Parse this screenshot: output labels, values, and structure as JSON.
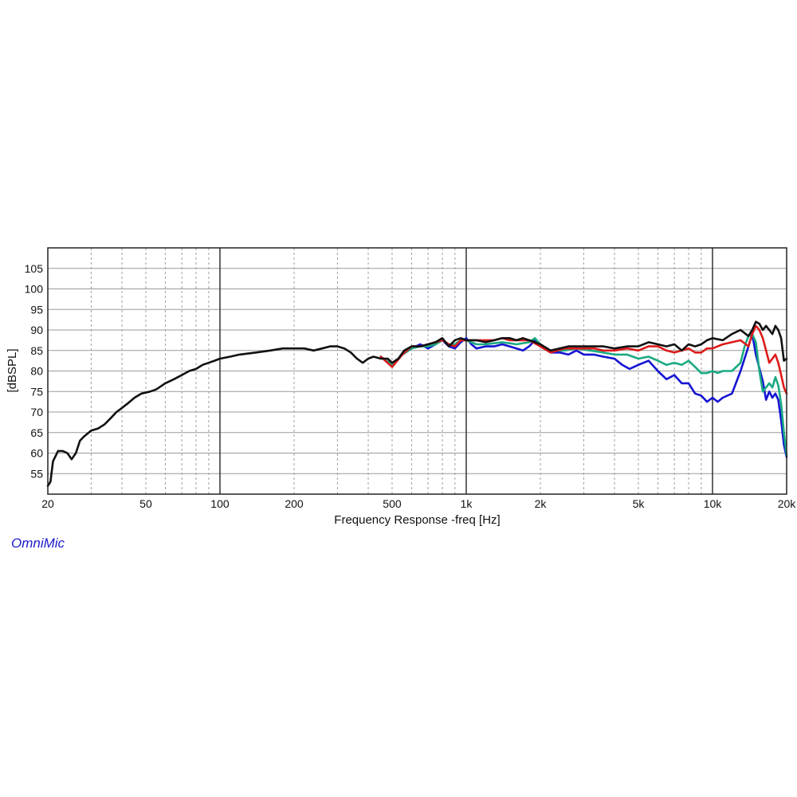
{
  "brand": {
    "label": "OmniMic",
    "color": "#1a1acc"
  },
  "chart_data": {
    "type": "line",
    "xlabel": "Frequency Response -freq [Hz]",
    "ylabel": "[dBSPL]",
    "x_scale": "log",
    "xlim": [
      20,
      20000
    ],
    "ylim": [
      50,
      110
    ],
    "grid": true,
    "x_tick_values": [
      20,
      50,
      100,
      200,
      500,
      1000,
      2000,
      5000,
      10000,
      20000
    ],
    "x_tick_labels": [
      "20",
      "50",
      "100",
      "200",
      "500",
      "1k",
      "2k",
      "5k",
      "10k",
      "20k"
    ],
    "y_tick_values": [
      55,
      60,
      65,
      70,
      75,
      80,
      85,
      90,
      95,
      100,
      105
    ],
    "y_tick_labels": [
      "55",
      "60",
      "65",
      "70",
      "75",
      "80",
      "85",
      "90",
      "95",
      "100",
      "105"
    ],
    "series": [
      {
        "color": "#1414d2",
        "points": [
          [
            450,
            83.5
          ],
          [
            500,
            81.5
          ],
          [
            550,
            84
          ],
          [
            600,
            85.5
          ],
          [
            650,
            86.5
          ],
          [
            700,
            85.5
          ],
          [
            750,
            86.5
          ],
          [
            800,
            87.5
          ],
          [
            850,
            86
          ],
          [
            900,
            85.5
          ],
          [
            950,
            87
          ],
          [
            1000,
            88
          ],
          [
            1050,
            86.5
          ],
          [
            1100,
            85.5
          ],
          [
            1200,
            86
          ],
          [
            1300,
            86
          ],
          [
            1400,
            86.5
          ],
          [
            1500,
            86
          ],
          [
            1600,
            85.5
          ],
          [
            1700,
            85
          ],
          [
            1800,
            86
          ],
          [
            1900,
            87.5
          ],
          [
            2000,
            86
          ],
          [
            2200,
            84.5
          ],
          [
            2400,
            84.5
          ],
          [
            2600,
            84
          ],
          [
            2800,
            85
          ],
          [
            3000,
            84
          ],
          [
            3300,
            84
          ],
          [
            3600,
            83.5
          ],
          [
            4000,
            83
          ],
          [
            4300,
            81.5
          ],
          [
            4600,
            80.5
          ],
          [
            5000,
            81.5
          ],
          [
            5500,
            82.5
          ],
          [
            6000,
            80
          ],
          [
            6500,
            78
          ],
          [
            7000,
            79
          ],
          [
            7500,
            77
          ],
          [
            8000,
            77
          ],
          [
            8500,
            74.5
          ],
          [
            9000,
            74
          ],
          [
            9500,
            72.5
          ],
          [
            10000,
            73.5
          ],
          [
            10500,
            72.5
          ],
          [
            11000,
            73.5
          ],
          [
            12000,
            74.5
          ],
          [
            13000,
            80
          ],
          [
            14000,
            86
          ],
          [
            14500,
            89
          ],
          [
            15000,
            84
          ],
          [
            16000,
            77.5
          ],
          [
            16500,
            73
          ],
          [
            17000,
            75
          ],
          [
            17500,
            73.5
          ],
          [
            18000,
            74.5
          ],
          [
            18500,
            73
          ],
          [
            19000,
            68
          ],
          [
            19500,
            62
          ],
          [
            20000,
            59
          ]
        ]
      },
      {
        "color": "#1aaa82",
        "points": [
          [
            450,
            83.5
          ],
          [
            500,
            81.5
          ],
          [
            550,
            84
          ],
          [
            600,
            85.5
          ],
          [
            650,
            86
          ],
          [
            700,
            86
          ],
          [
            750,
            86.5
          ],
          [
            800,
            87.5
          ],
          [
            850,
            86.5
          ],
          [
            900,
            86.5
          ],
          [
            950,
            87.5
          ],
          [
            1000,
            87.5
          ],
          [
            1100,
            86.5
          ],
          [
            1200,
            86.5
          ],
          [
            1400,
            87
          ],
          [
            1600,
            86.5
          ],
          [
            1800,
            87
          ],
          [
            1900,
            88
          ],
          [
            2000,
            86.5
          ],
          [
            2200,
            85
          ],
          [
            2500,
            85
          ],
          [
            2800,
            85.5
          ],
          [
            3200,
            85
          ],
          [
            3600,
            84.5
          ],
          [
            4000,
            84
          ],
          [
            4500,
            84
          ],
          [
            5000,
            83
          ],
          [
            5500,
            83.5
          ],
          [
            6000,
            82.5
          ],
          [
            6500,
            81.5
          ],
          [
            7000,
            82
          ],
          [
            7500,
            81.5
          ],
          [
            8000,
            82.5
          ],
          [
            8500,
            81
          ],
          [
            9000,
            79.5
          ],
          [
            9500,
            79.5
          ],
          [
            10000,
            80
          ],
          [
            10500,
            79.5
          ],
          [
            11000,
            80
          ],
          [
            12000,
            80
          ],
          [
            13000,
            82
          ],
          [
            13500,
            86
          ],
          [
            14000,
            88.5
          ],
          [
            14500,
            89
          ],
          [
            15000,
            87
          ],
          [
            15500,
            80
          ],
          [
            16000,
            75
          ],
          [
            16500,
            76
          ],
          [
            17000,
            77
          ],
          [
            17500,
            76
          ],
          [
            18000,
            78.5
          ],
          [
            18500,
            76.5
          ],
          [
            19000,
            72
          ],
          [
            19500,
            65
          ],
          [
            20000,
            59.5
          ]
        ]
      },
      {
        "color": "#dd1a1a",
        "points": [
          [
            450,
            83.5
          ],
          [
            500,
            81
          ],
          [
            550,
            84
          ],
          [
            600,
            86
          ],
          [
            650,
            86
          ],
          [
            700,
            86.5
          ],
          [
            750,
            87
          ],
          [
            800,
            87.5
          ],
          [
            850,
            86.5
          ],
          [
            900,
            86
          ],
          [
            950,
            87.5
          ],
          [
            1000,
            87.5
          ],
          [
            1100,
            87.5
          ],
          [
            1200,
            87.5
          ],
          [
            1300,
            87.5
          ],
          [
            1400,
            88
          ],
          [
            1500,
            87.5
          ],
          [
            1600,
            87.5
          ],
          [
            1800,
            87.5
          ],
          [
            2000,
            86
          ],
          [
            2200,
            84.5
          ],
          [
            2500,
            85.5
          ],
          [
            2800,
            85.5
          ],
          [
            3000,
            85.5
          ],
          [
            3300,
            85.5
          ],
          [
            3600,
            85
          ],
          [
            4000,
            85
          ],
          [
            4500,
            85.5
          ],
          [
            5000,
            85
          ],
          [
            5500,
            86
          ],
          [
            6000,
            86
          ],
          [
            6500,
            85
          ],
          [
            7000,
            84.5
          ],
          [
            7500,
            85
          ],
          [
            8000,
            85.5
          ],
          [
            8500,
            84.5
          ],
          [
            9000,
            84.5
          ],
          [
            9500,
            85.5
          ],
          [
            10000,
            85.5
          ],
          [
            11000,
            86.5
          ],
          [
            12000,
            87
          ],
          [
            13000,
            87.5
          ],
          [
            14000,
            86
          ],
          [
            14500,
            89
          ],
          [
            15000,
            91
          ],
          [
            15500,
            90
          ],
          [
            16000,
            88
          ],
          [
            16500,
            85
          ],
          [
            17000,
            82
          ],
          [
            17500,
            83
          ],
          [
            18000,
            84
          ],
          [
            18500,
            82
          ],
          [
            19000,
            79
          ],
          [
            19500,
            76
          ],
          [
            20000,
            74.5
          ]
        ]
      },
      {
        "color": "#111111",
        "points": [
          [
            20,
            52
          ],
          [
            20.5,
            53
          ],
          [
            21,
            58
          ],
          [
            22,
            60.5
          ],
          [
            23,
            60.5
          ],
          [
            24,
            60
          ],
          [
            25,
            58.5
          ],
          [
            26,
            60
          ],
          [
            27,
            63
          ],
          [
            28,
            64
          ],
          [
            30,
            65.5
          ],
          [
            32,
            66
          ],
          [
            34,
            67
          ],
          [
            36,
            68.5
          ],
          [
            38,
            70
          ],
          [
            40,
            71
          ],
          [
            42,
            72
          ],
          [
            45,
            73.5
          ],
          [
            48,
            74.5
          ],
          [
            52,
            75
          ],
          [
            55,
            75.5
          ],
          [
            60,
            77
          ],
          [
            65,
            78
          ],
          [
            70,
            79
          ],
          [
            75,
            80
          ],
          [
            80,
            80.5
          ],
          [
            85,
            81.5
          ],
          [
            90,
            82
          ],
          [
            95,
            82.5
          ],
          [
            100,
            83
          ],
          [
            110,
            83.5
          ],
          [
            120,
            84
          ],
          [
            140,
            84.5
          ],
          [
            160,
            85
          ],
          [
            180,
            85.5
          ],
          [
            200,
            85.5
          ],
          [
            220,
            85.5
          ],
          [
            240,
            85
          ],
          [
            260,
            85.5
          ],
          [
            280,
            86
          ],
          [
            300,
            86
          ],
          [
            320,
            85.5
          ],
          [
            340,
            84.5
          ],
          [
            360,
            83
          ],
          [
            380,
            82
          ],
          [
            400,
            83
          ],
          [
            420,
            83.5
          ],
          [
            450,
            83
          ],
          [
            480,
            83
          ],
          [
            500,
            82
          ],
          [
            530,
            83
          ],
          [
            560,
            85
          ],
          [
            600,
            86
          ],
          [
            650,
            86
          ],
          [
            700,
            86.5
          ],
          [
            750,
            87
          ],
          [
            800,
            88
          ],
          [
            850,
            86
          ],
          [
            900,
            87.5
          ],
          [
            950,
            88
          ],
          [
            1000,
            87.5
          ],
          [
            1100,
            87.5
          ],
          [
            1200,
            87
          ],
          [
            1300,
            87.5
          ],
          [
            1400,
            88
          ],
          [
            1500,
            88
          ],
          [
            1600,
            87.5
          ],
          [
            1700,
            88
          ],
          [
            1800,
            87.5
          ],
          [
            1900,
            87
          ],
          [
            2000,
            86.5
          ],
          [
            2200,
            85
          ],
          [
            2400,
            85.5
          ],
          [
            2600,
            86
          ],
          [
            2800,
            86
          ],
          [
            3000,
            86
          ],
          [
            3300,
            86
          ],
          [
            3600,
            86
          ],
          [
            4000,
            85.5
          ],
          [
            4500,
            86
          ],
          [
            5000,
            86
          ],
          [
            5500,
            87
          ],
          [
            6000,
            86.5
          ],
          [
            6500,
            86
          ],
          [
            7000,
            86.5
          ],
          [
            7500,
            85
          ],
          [
            8000,
            86.5
          ],
          [
            8500,
            86
          ],
          [
            9000,
            86.5
          ],
          [
            9500,
            87.5
          ],
          [
            10000,
            88
          ],
          [
            11000,
            87.5
          ],
          [
            12000,
            89
          ],
          [
            13000,
            90
          ],
          [
            14000,
            88.5
          ],
          [
            14500,
            90
          ],
          [
            15000,
            92
          ],
          [
            15500,
            91.5
          ],
          [
            16000,
            90
          ],
          [
            16500,
            91
          ],
          [
            17000,
            90
          ],
          [
            17500,
            89
          ],
          [
            18000,
            91
          ],
          [
            18500,
            90
          ],
          [
            19000,
            88
          ],
          [
            19500,
            82.5
          ],
          [
            20000,
            83
          ]
        ]
      }
    ]
  }
}
